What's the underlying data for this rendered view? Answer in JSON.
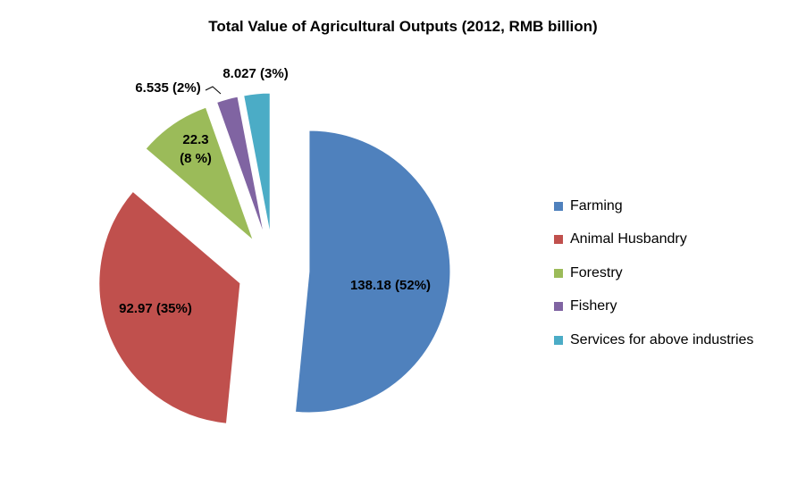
{
  "chart_data": {
    "type": "pie",
    "title": "Total Value of Agricultural Outputs (2012, RMB billion)",
    "legend_position": "right",
    "slices": [
      {
        "name": "Farming",
        "value": 138.18,
        "label": "138.18 (52%)",
        "color": "#4F81BD"
      },
      {
        "name": "Animal Husbandry",
        "value": 92.97,
        "label": "92.97 (35%)",
        "color": "#C0504D"
      },
      {
        "name": "Forestry",
        "value": 22.3,
        "label_lines": [
          "22.3",
          "(8 %)"
        ],
        "color": "#9BBB59"
      },
      {
        "name": "Fishery",
        "value": 6.535,
        "label": "6.535 (2%)",
        "color": "#8064A2"
      },
      {
        "name": "Services for above industries",
        "value": 8.027,
        "label": "8.027 (3%)",
        "color": "#4BACC6"
      }
    ]
  }
}
